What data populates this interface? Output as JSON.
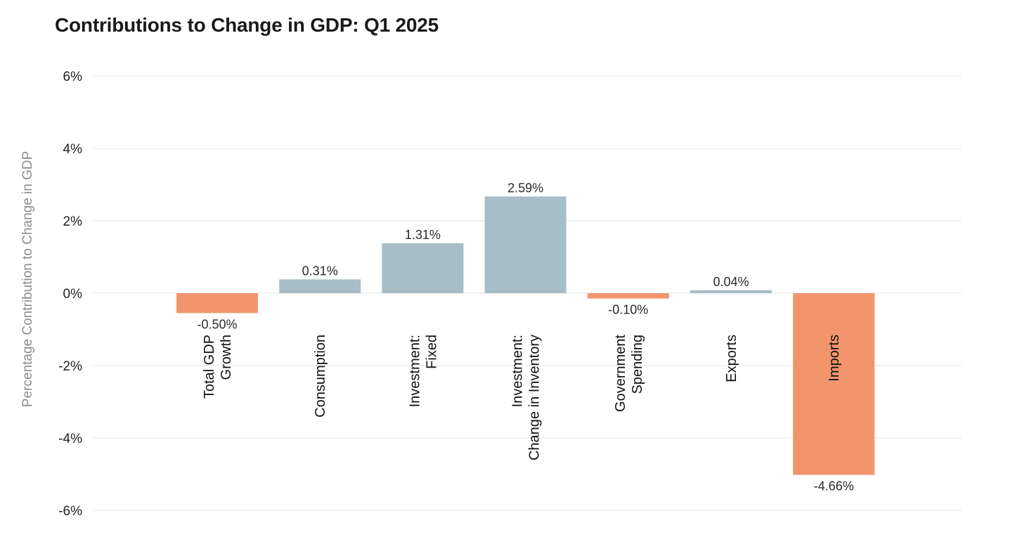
{
  "chart_data": {
    "type": "bar",
    "title": "Contributions to Change in GDP: Q1 2025",
    "ylabel": "Percentage Contribution to Change in GDP",
    "xlabel": "",
    "ylim": [
      -6,
      6
    ],
    "yticks": [
      6,
      4,
      2,
      0,
      -2,
      -4,
      -6
    ],
    "ytick_labels": [
      "6%",
      "4%",
      "2%",
      "0%",
      "-2%",
      "-4%",
      "-6%"
    ],
    "grid": true,
    "categories": [
      [
        "Total GDP",
        "Growth"
      ],
      [
        "Consumption"
      ],
      [
        "Investment:",
        "Fixed"
      ],
      [
        "Investment:",
        "Change in Inventory"
      ],
      [
        "Government",
        "Spending"
      ],
      [
        "Exports"
      ],
      [
        "Imports"
      ]
    ],
    "values": [
      -0.5,
      0.31,
      1.31,
      2.59,
      -0.1,
      0.04,
      -4.66
    ],
    "bar_values": [
      -0.55,
      0.38,
      1.38,
      2.67,
      -0.15,
      0.08,
      -5.02
    ],
    "value_labels": [
      "-0.50%",
      "0.31%",
      "1.31%",
      "2.59%",
      "-0.10%",
      "0.04%",
      "-4.66%"
    ],
    "colors": {
      "positive": "#a7bdc7",
      "negative": "#f2956c"
    }
  }
}
